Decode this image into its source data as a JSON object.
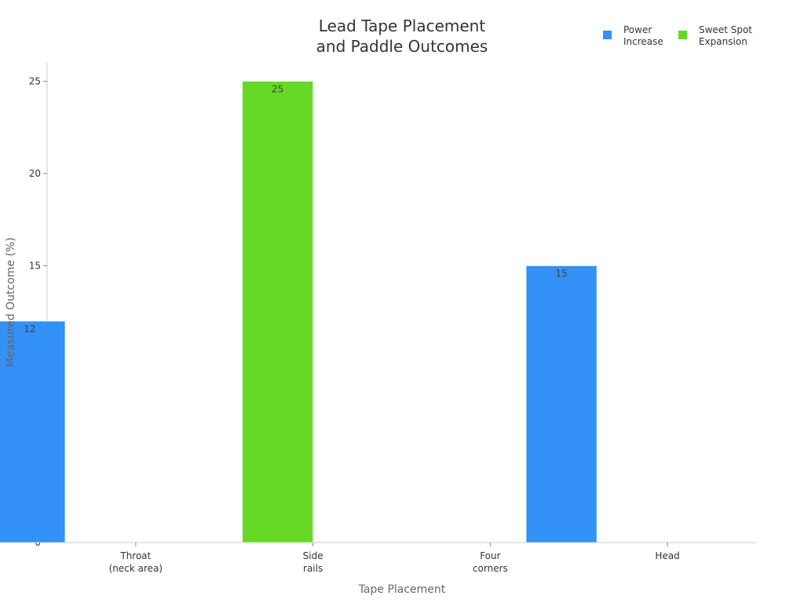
{
  "chart_data": {
    "type": "bar",
    "title": [
      "Lead Tape Placement",
      "and Paddle Outcomes"
    ],
    "xlabel": "Tape Placement",
    "ylabel": "Measured Outcome (%)",
    "ylim": [
      0,
      26
    ],
    "yticks": [
      0,
      5,
      10,
      15,
      20,
      25
    ],
    "categories": [
      [
        "Throat",
        "(neck area)"
      ],
      [
        "Side",
        "rails"
      ],
      [
        "Four",
        "corners"
      ],
      [
        "Head"
      ]
    ],
    "series": [
      {
        "name": [
          "Power",
          "Increase"
        ],
        "color": "#3391f7",
        "values": [
          12,
          null,
          null,
          15
        ]
      },
      {
        "name": [
          "Sweet Spot",
          "Expansion"
        ],
        "color": "#66d926",
        "values": [
          null,
          25,
          null,
          null
        ]
      }
    ],
    "legend": "top-right",
    "grid": false
  }
}
